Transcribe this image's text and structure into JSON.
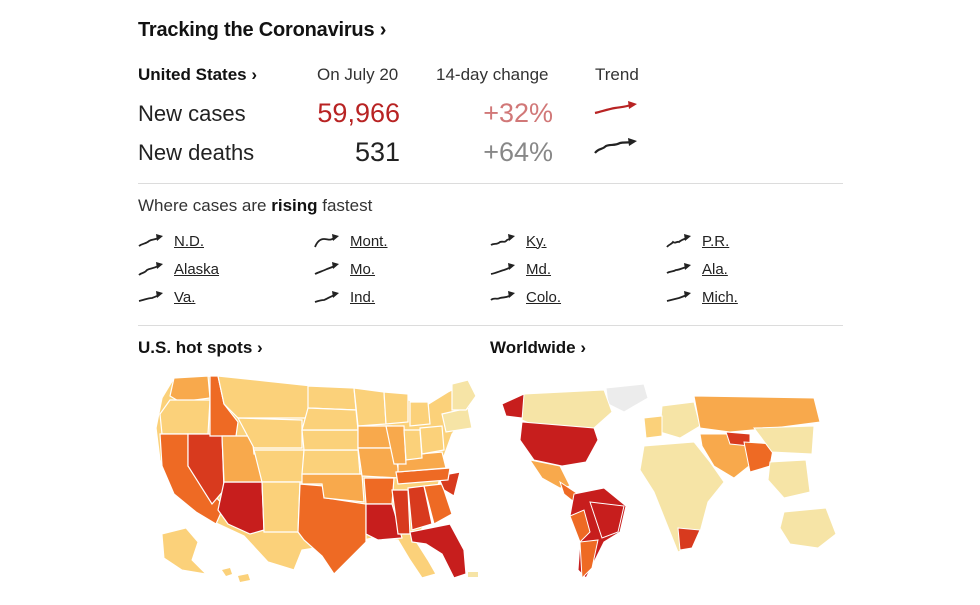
{
  "title": "Tracking the Coronavirus ›",
  "header": {
    "region": "United States ›",
    "date": "On July 20",
    "change": "14-day change",
    "trend": "Trend"
  },
  "rows": [
    {
      "label": "New cases",
      "value": "59,966",
      "change": "+32%",
      "color": "#b82323"
    },
    {
      "label": "New deaths",
      "value": "531",
      "change": "+64%",
      "color": "#222222"
    }
  ],
  "rising": {
    "prefix": "Where cases are ",
    "bold": "rising",
    "suffix": " fastest"
  },
  "states": [
    "N.D.",
    "Alaska",
    "Va.",
    "Mont.",
    "Mo.",
    "Ind.",
    "Ky.",
    "Md.",
    "Colo.",
    "P.R.",
    "Ala.",
    "Mich."
  ],
  "sections": {
    "us": "U.S. hot spots ›",
    "world": "Worldwide ›"
  },
  "colors": {
    "accent_red": "#b82323",
    "map_dark": "#c71e1d",
    "map_mid": "#ee6a24",
    "map_orange": "#f8a94c",
    "map_light": "#fbd17a",
    "map_pale": "#f6e4a6"
  }
}
